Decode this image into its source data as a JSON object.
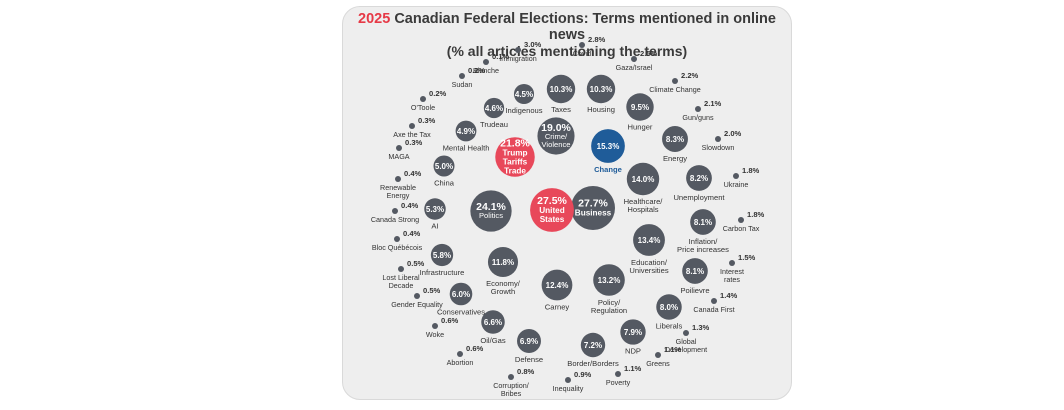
{
  "chart_data": {
    "type": "bubble",
    "title_year": "2025",
    "title_rest": " Canadian Federal Elections: Terms mentioned in online news",
    "subtitle": "(% all articles mentioning the terms)",
    "colors": {
      "default": "#545962",
      "trump": "#e8485a",
      "us": "#e8485a",
      "change": "#1f5c99",
      "label": "#333333",
      "change_label": "#1f5c99"
    },
    "terms": [
      {
        "label": "Business",
        "pct": "27.7%",
        "value": 27.7,
        "style": "inside-bold"
      },
      {
        "label": "United\nStates",
        "pct": "27.5%",
        "value": 27.5,
        "style": "inside-bold",
        "color": "us"
      },
      {
        "label": "Politics",
        "pct": "24.1%",
        "value": 24.1,
        "style": "inside"
      },
      {
        "label": "Trump\nTariffs\nTrade",
        "pct": "21.8%",
        "value": 21.8,
        "style": "inside-bold",
        "color": "trump"
      },
      {
        "label": "Crime/\nViolence",
        "pct": "19.0%",
        "value": 19.0,
        "style": "inside"
      },
      {
        "label": "Change",
        "pct": "15.3%",
        "value": 15.3,
        "style": "inside-below",
        "color": "change"
      },
      {
        "label": "Healthcare/\nHospitals",
        "pct": "14.0%",
        "value": 14.0,
        "style": "below"
      },
      {
        "label": "Education/\nUniversities",
        "pct": "13.4%",
        "value": 13.4,
        "style": "below"
      },
      {
        "label": "Policy/\nRegulation",
        "pct": "13.2%",
        "value": 13.2,
        "style": "below"
      },
      {
        "label": "Carney",
        "pct": "12.4%",
        "value": 12.4,
        "style": "below"
      },
      {
        "label": "Economy/\nGrowth",
        "pct": "11.8%",
        "value": 11.8,
        "style": "below"
      },
      {
        "label": "Taxes",
        "pct": "10.3%",
        "value": 10.3,
        "style": "below"
      },
      {
        "label": "Housing",
        "pct": "10.3%",
        "value": 10.3,
        "style": "below"
      },
      {
        "label": "Hunger",
        "pct": "9.5%",
        "value": 9.5,
        "style": "below"
      },
      {
        "label": "Energy",
        "pct": "8.3%",
        "value": 8.3,
        "style": "below"
      },
      {
        "label": "Unemployment",
        "pct": "8.2%",
        "value": 8.2,
        "style": "below"
      },
      {
        "label": "Inflation/\nPrice increases",
        "pct": "8.1%",
        "value": 8.1,
        "style": "below"
      },
      {
        "label": "Poilievre",
        "pct": "8.1%",
        "value": 8.1,
        "style": "below"
      },
      {
        "label": "Liberals",
        "pct": "8.0%",
        "value": 8.0,
        "style": "below"
      },
      {
        "label": "NDP",
        "pct": "7.9%",
        "value": 7.9,
        "style": "below"
      },
      {
        "label": "Border/Borders",
        "pct": "7.2%",
        "value": 7.2,
        "style": "below"
      },
      {
        "label": "Defense",
        "pct": "6.9%",
        "value": 6.9,
        "style": "below"
      },
      {
        "label": "Oil/Gas",
        "pct": "6.6%",
        "value": 6.6,
        "style": "below"
      },
      {
        "label": "Conservatives",
        "pct": "6.0%",
        "value": 6.0,
        "style": "below"
      },
      {
        "label": "Infrastructure",
        "pct": "5.8%",
        "value": 5.8,
        "style": "below"
      },
      {
        "label": "AI",
        "pct": "5.3%",
        "value": 5.3,
        "style": "below"
      },
      {
        "label": "China",
        "pct": "5.0%",
        "value": 5.0,
        "style": "below"
      },
      {
        "label": "Mental Health",
        "pct": "4.9%",
        "value": 4.9,
        "style": "below"
      },
      {
        "label": "Trudeau",
        "pct": "4.6%",
        "value": 4.6,
        "style": "below"
      },
      {
        "label": "Indigenous",
        "pct": "4.5%",
        "value": 4.5,
        "style": "below"
      },
      {
        "label": "Immigration",
        "pct": "3.0%",
        "value": 3.0,
        "style": "dot"
      },
      {
        "label": "Covid",
        "pct": "2.8%",
        "value": 2.8,
        "style": "dot"
      },
      {
        "label": "Gaza/Israel",
        "pct": "2.5%",
        "value": 2.5,
        "style": "dot"
      },
      {
        "label": "Climate Change",
        "pct": "2.2%",
        "value": 2.2,
        "style": "dot"
      },
      {
        "label": "Gun/guns",
        "pct": "2.1%",
        "value": 2.1,
        "style": "dot"
      },
      {
        "label": "Slowdown",
        "pct": "2.0%",
        "value": 2.0,
        "style": "dot"
      },
      {
        "label": "Ukraine",
        "pct": "1.8%",
        "value": 1.8,
        "style": "dot"
      },
      {
        "label": "Carbon Tax",
        "pct": "1.8%",
        "value": 1.8,
        "style": "dot"
      },
      {
        "label": "Interest\nrates",
        "pct": "1.5%",
        "value": 1.5,
        "style": "dot"
      },
      {
        "label": "Canada First",
        "pct": "1.4%",
        "value": 1.4,
        "style": "dot"
      },
      {
        "label": "Global\nDevelopment",
        "pct": "1.3%",
        "value": 1.3,
        "style": "dot"
      },
      {
        "label": "Greens",
        "pct": "1.1%",
        "value": 1.1,
        "style": "dot"
      },
      {
        "label": "Poverty",
        "pct": "1.1%",
        "value": 1.1,
        "style": "dot"
      },
      {
        "label": "Inequality",
        "pct": "0.9%",
        "value": 0.9,
        "style": "dot"
      },
      {
        "label": "Corruption/\nBribes",
        "pct": "0.8%",
        "value": 0.8,
        "style": "dot"
      },
      {
        "label": "Abortion",
        "pct": "0.6%",
        "value": 0.6,
        "style": "dot"
      },
      {
        "label": "Woke",
        "pct": "0.6%",
        "value": 0.6,
        "style": "dot"
      },
      {
        "label": "Gender Equality",
        "pct": "0.5%",
        "value": 0.5,
        "style": "dot"
      },
      {
        "label": "Lost Liberal\nDecade",
        "pct": "0.5%",
        "value": 0.5,
        "style": "dot"
      },
      {
        "label": "Bloc Québécois",
        "pct": "0.4%",
        "value": 0.4,
        "style": "dot"
      },
      {
        "label": "Canada Strong",
        "pct": "0.4%",
        "value": 0.4,
        "style": "dot"
      },
      {
        "label": "Renewable\nEnergy",
        "pct": "0.4%",
        "value": 0.4,
        "style": "dot"
      },
      {
        "label": "MAGA",
        "pct": "0.3%",
        "value": 0.3,
        "style": "dot"
      },
      {
        "label": "Axe the Tax",
        "pct": "0.3%",
        "value": 0.3,
        "style": "dot"
      },
      {
        "label": "O'Toole",
        "pct": "0.2%",
        "value": 0.2,
        "style": "dot"
      },
      {
        "label": "Sudan",
        "pct": "0.2%",
        "value": 0.2,
        "style": "dot"
      },
      {
        "label": "Blanche",
        "pct": "0.1%",
        "value": 0.1,
        "style": "dot"
      }
    ]
  }
}
